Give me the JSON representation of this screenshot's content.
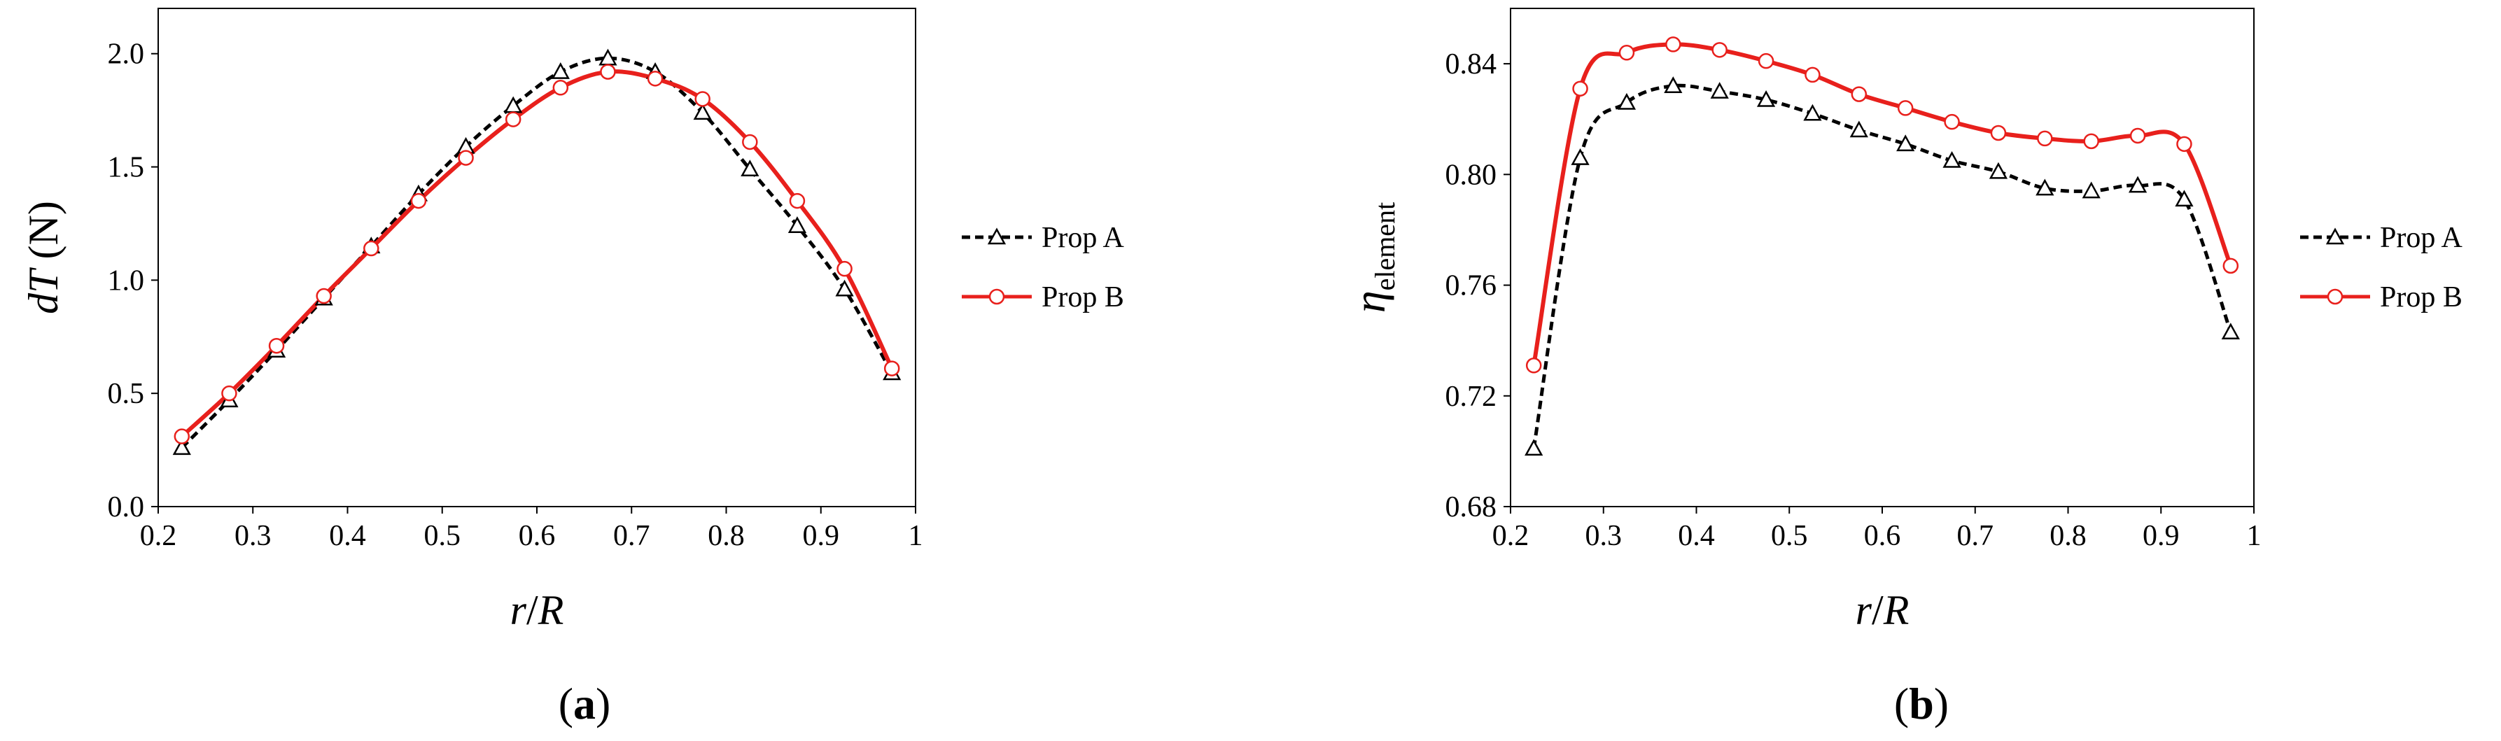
{
  "chart_data": [
    {
      "id": "a",
      "type": "line",
      "caption_letter": "a",
      "xlabel": "r/R",
      "ylabel": "dT (N)",
      "ylabel_italic": "dT",
      "ylabel_rest": " (N)",
      "xlabel_r": "r",
      "xlabel_sep": "/",
      "xlabel_R": "R",
      "xlim": [
        0.2,
        1.0
      ],
      "ylim": [
        0.0,
        2.2
      ],
      "x_ticks": [
        0.2,
        0.3,
        0.4,
        0.5,
        0.6,
        0.7,
        0.8,
        0.9,
        1.0
      ],
      "x_tick_labels": [
        "0.2",
        "0.3",
        "0.4",
        "0.5",
        "0.6",
        "0.7",
        "0.8",
        "0.9",
        "1"
      ],
      "y_ticks": [
        0.0,
        0.5,
        1.0,
        1.5,
        2.0
      ],
      "y_tick_labels": [
        "0.0",
        "0.5",
        "1.0",
        "1.5",
        "2.0"
      ],
      "x": [
        0.225,
        0.275,
        0.325,
        0.375,
        0.425,
        0.475,
        0.525,
        0.575,
        0.625,
        0.675,
        0.725,
        0.775,
        0.825,
        0.875,
        0.925,
        0.975
      ],
      "series": [
        {
          "name": "Prop A",
          "color": "#000000",
          "marker": "triangle",
          "dashed": true,
          "values": [
            0.26,
            0.47,
            0.69,
            0.92,
            1.15,
            1.38,
            1.59,
            1.77,
            1.92,
            1.98,
            1.92,
            1.74,
            1.49,
            1.24,
            0.96,
            0.59
          ]
        },
        {
          "name": "Prop B",
          "color": "#e8201c",
          "marker": "circle",
          "dashed": false,
          "values": [
            0.31,
            0.5,
            0.71,
            0.93,
            1.14,
            1.35,
            1.54,
            1.71,
            1.85,
            1.92,
            1.89,
            1.8,
            1.61,
            1.35,
            1.05,
            0.61
          ]
        }
      ]
    },
    {
      "id": "b",
      "type": "line",
      "caption_letter": "b",
      "xlabel": "r/R",
      "ylabel": "η element",
      "ylabel_main": "η",
      "ylabel_sub": "element",
      "xlabel_r": "r",
      "xlabel_sep": "/",
      "xlabel_R": "R",
      "xlim": [
        0.2,
        1.0
      ],
      "ylim": [
        0.68,
        0.86
      ],
      "x_ticks": [
        0.2,
        0.3,
        0.4,
        0.5,
        0.6,
        0.7,
        0.8,
        0.9,
        1.0
      ],
      "x_tick_labels": [
        "0.2",
        "0.3",
        "0.4",
        "0.5",
        "0.6",
        "0.7",
        "0.8",
        "0.9",
        "1"
      ],
      "y_ticks": [
        0.68,
        0.72,
        0.76,
        0.8,
        0.84
      ],
      "y_tick_labels": [
        "0.68",
        "0.72",
        "0.76",
        "0.80",
        "0.84"
      ],
      "x": [
        0.225,
        0.275,
        0.325,
        0.375,
        0.425,
        0.475,
        0.525,
        0.575,
        0.625,
        0.675,
        0.725,
        0.775,
        0.825,
        0.875,
        0.925,
        0.975
      ],
      "series": [
        {
          "name": "Prop A",
          "color": "#000000",
          "marker": "triangle",
          "dashed": true,
          "values": [
            0.701,
            0.806,
            0.826,
            0.832,
            0.83,
            0.827,
            0.822,
            0.816,
            0.811,
            0.805,
            0.801,
            0.795,
            0.794,
            0.796,
            0.791,
            0.743
          ]
        },
        {
          "name": "Prop B",
          "color": "#e8201c",
          "marker": "circle",
          "dashed": false,
          "values": [
            0.731,
            0.831,
            0.844,
            0.847,
            0.845,
            0.841,
            0.836,
            0.829,
            0.824,
            0.819,
            0.815,
            0.813,
            0.812,
            0.814,
            0.811,
            0.767
          ]
        }
      ]
    }
  ]
}
